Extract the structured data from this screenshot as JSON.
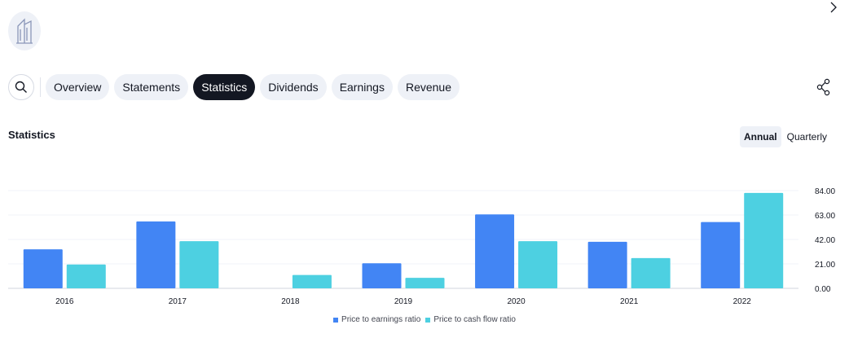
{
  "header": {
    "logo_icon": "building-icon",
    "next_icon": "chevron-right-icon"
  },
  "tabs": [
    {
      "label": "Overview",
      "active": false
    },
    {
      "label": "Statements",
      "active": false
    },
    {
      "label": "Statistics",
      "active": true
    },
    {
      "label": "Dividends",
      "active": false
    },
    {
      "label": "Earnings",
      "active": false
    },
    {
      "label": "Revenue",
      "active": false
    }
  ],
  "toolbar": {
    "search_icon": "search-icon",
    "share_icon": "share-icon"
  },
  "section": {
    "title": "Statistics",
    "period_options": [
      {
        "label": "Annual",
        "active": true
      },
      {
        "label": "Quarterly",
        "active": false
      }
    ]
  },
  "chart_data": {
    "type": "bar",
    "categories": [
      "2016",
      "2017",
      "2018",
      "2019",
      "2020",
      "2021",
      "2022"
    ],
    "series": [
      {
        "name": "Price to earnings ratio",
        "color": "#4285f4",
        "values": [
          33.5,
          57.5,
          null,
          21.5,
          63.5,
          40.0,
          57.0
        ]
      },
      {
        "name": "Price to cash flow ratio",
        "color": "#4dd0e1",
        "values": [
          20.5,
          40.5,
          11.5,
          9.0,
          40.5,
          26.0,
          82.0
        ]
      }
    ],
    "ylim": [
      0,
      84
    ],
    "yticks": [
      "84.00",
      "63.00",
      "42.00",
      "21.00",
      "0.00"
    ],
    "ytick_values": [
      84,
      63,
      42,
      21,
      0
    ],
    "grid": true,
    "legend_position": "bottom-center"
  }
}
